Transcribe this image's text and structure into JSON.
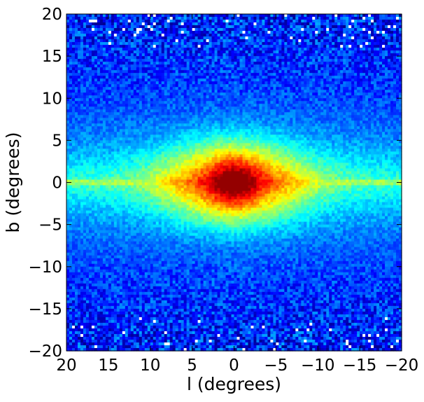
{
  "chart_data": {
    "type": "heatmap",
    "title": "",
    "xlabel": "l (degrees)",
    "ylabel": "b (degrees)",
    "xlim": [
      20,
      -20
    ],
    "ylim": [
      -20,
      20
    ],
    "x_reversed": true,
    "xticks": [
      20,
      15,
      10,
      5,
      0,
      -5,
      -10,
      -15,
      -20
    ],
    "xtick_labels": [
      "20",
      "15",
      "10",
      "5",
      "0",
      "−5",
      "−10",
      "−15",
      "−20"
    ],
    "yticks": [
      20,
      15,
      10,
      5,
      0,
      -5,
      -10,
      -15,
      -20
    ],
    "ytick_labels": [
      "20",
      "15",
      "10",
      "5",
      "0",
      "−5",
      "−10",
      "−15",
      "−20"
    ],
    "grid": false,
    "colorbar": false,
    "colormap": "jet",
    "bins": {
      "nx": 120,
      "ny": 120
    },
    "features": {
      "core_peak_at": [
        0,
        0
      ],
      "disk_plane_at_b": 0,
      "bulge_extent_l": [
        -9,
        9
      ],
      "bulge_extent_b": [
        -5.5,
        5.5
      ],
      "sparse_regions_abs_b_above": 16
    },
    "colors": {
      "background": "#ffffff",
      "axes_edge": "#000000",
      "empty_bin": "#ffffff"
    }
  }
}
